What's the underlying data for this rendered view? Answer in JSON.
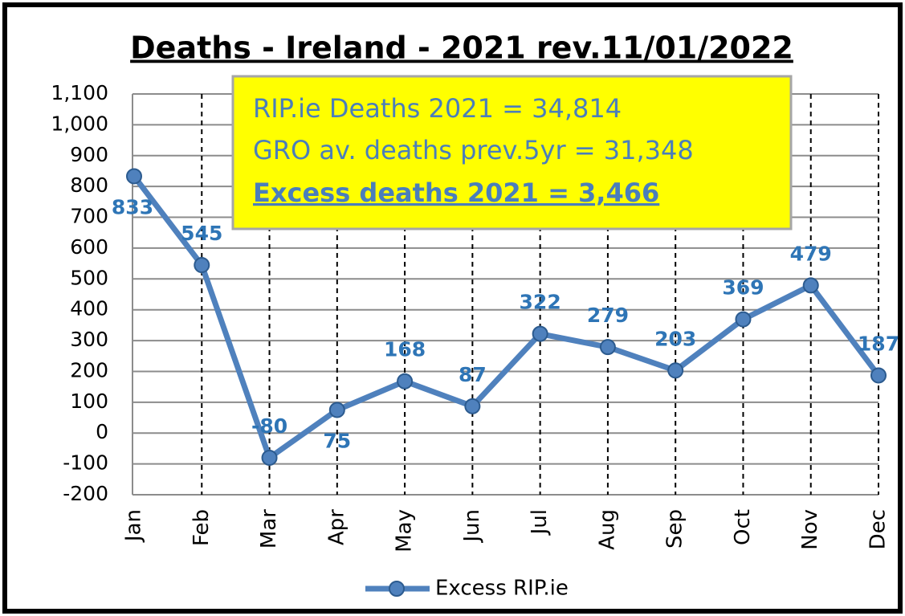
{
  "chart_data": {
    "type": "line",
    "title": "Deaths - Ireland - 2021 rev.11/01/2022",
    "annotations": [
      "RIP.ie Deaths 2021 = 34,814",
      "GRO av. deaths prev.5yr = 31,348",
      "Excess deaths 2021 = 3,466"
    ],
    "categories": [
      "Jan",
      "Feb",
      "Mar",
      "Apr",
      "May",
      "Jun",
      "Jul",
      "Aug",
      "Sep",
      "Oct",
      "Nov",
      "Dec"
    ],
    "series": [
      {
        "name": "Excess RIP.ie",
        "color": "#4f81bd",
        "values": [
          833,
          545,
          -80,
          75,
          168,
          87,
          322,
          279,
          203,
          369,
          479,
          187
        ]
      }
    ],
    "ylim": [
      -200,
      1100
    ],
    "yticks": [
      -200,
      -100,
      0,
      100,
      200,
      300,
      400,
      500,
      600,
      700,
      800,
      900,
      {
        "value": 1000,
        "label": "1,000"
      },
      {
        "value": 1100,
        "label": "1,100"
      }
    ],
    "grid": true,
    "legend": "bottom"
  }
}
